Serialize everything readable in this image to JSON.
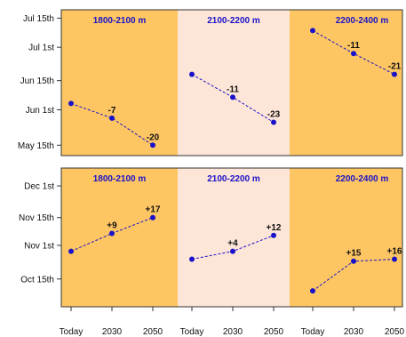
{
  "colors": {
    "band_dark": "#fdc663",
    "band_light": "#fde5d7",
    "series": "#1a12c8",
    "frame": "#333333"
  },
  "chart_data": [
    {
      "type": "line",
      "title": "",
      "xlabel": "",
      "ylabel": "",
      "x": [
        "Today",
        "2030",
        "2050"
      ],
      "y_ticks": [
        "May 15th",
        "Jun 1st",
        "Jun 15th",
        "Jul 1st",
        "Jul 15th"
      ],
      "y_tick_values": [
        135,
        152,
        166,
        182,
        196
      ],
      "ylim": [
        130,
        200
      ],
      "grid": false,
      "panels": [
        {
          "label": "1800-2100 m",
          "band": "dark",
          "values": [
            155,
            148,
            135
          ],
          "annotations": [
            "",
            "-7",
            "-20"
          ]
        },
        {
          "label": "2100-2200 m",
          "band": "light",
          "values": [
            169,
            158,
            146
          ],
          "annotations": [
            "",
            "-11",
            "-23"
          ]
        },
        {
          "label": "2200-2400 m",
          "band": "dark",
          "values": [
            190,
            179,
            169
          ],
          "annotations": [
            "",
            "-11",
            "-21"
          ]
        }
      ]
    },
    {
      "type": "line",
      "title": "",
      "xlabel": "",
      "ylabel": "",
      "x": [
        "Today",
        "2030",
        "2050"
      ],
      "y_ticks": [
        "Oct 15th",
        "Nov 1st",
        "Nov 15th",
        "Dec 1st"
      ],
      "y_tick_values": [
        288,
        305,
        319,
        335
      ],
      "ylim": [
        274,
        344
      ],
      "grid": false,
      "panels": [
        {
          "label": "1800-2100 m",
          "band": "dark",
          "values": [
            302,
            311,
            319
          ],
          "annotations": [
            "",
            "+9",
            "+17"
          ]
        },
        {
          "label": "2100-2200 m",
          "band": "light",
          "values": [
            298,
            302,
            310
          ],
          "annotations": [
            "",
            "+4",
            "+12"
          ]
        },
        {
          "label": "2200-2400 m",
          "band": "dark",
          "values": [
            282,
            297,
            298
          ],
          "annotations": [
            "",
            "+15",
            "+16"
          ]
        }
      ]
    }
  ]
}
